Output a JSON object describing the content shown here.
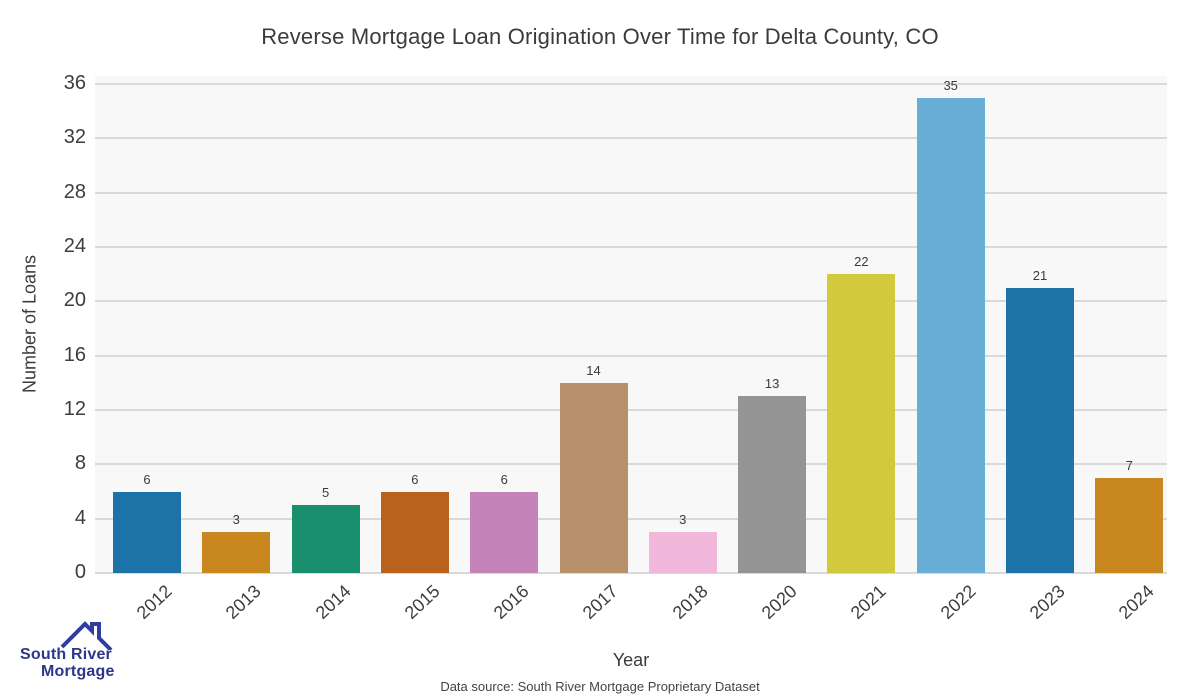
{
  "title": "Reverse Mortgage Loan Origination Over Time for Delta County, CO",
  "chart_data": {
    "type": "bar",
    "title": "Reverse Mortgage Loan Origination Over Time for Delta County, CO",
    "xlabel": "Year",
    "ylabel": "Number of Loans",
    "categories": [
      "2012",
      "2013",
      "2014",
      "2015",
      "2016",
      "2017",
      "2018",
      "2020",
      "2021",
      "2022",
      "2023",
      "2024"
    ],
    "values": [
      6,
      3,
      5,
      6,
      6,
      14,
      3,
      13,
      22,
      35,
      21,
      7
    ],
    "bar_colors": [
      "#1b73a8",
      "#c8881f",
      "#1a8f6e",
      "#b9621e",
      "#c383b8",
      "#b7916c",
      "#f2b8dc",
      "#949494",
      "#d2c93d",
      "#68aed6",
      "#1b73a8",
      "#c8881f"
    ],
    "yticks": [
      0,
      4,
      8,
      12,
      16,
      20,
      24,
      28,
      32,
      36
    ],
    "ylim": [
      0,
      36.6
    ],
    "grid": "horizontal",
    "value_labels_shown": true,
    "legend": "none"
  },
  "colors": {
    "plot_bg": "#f8f8f8",
    "grid": "#d9d9d9",
    "text": "#3b3b3b",
    "logo_text": "#2b3788",
    "logo_roof": "#2f3da3"
  },
  "footer": {
    "source_text": "Data source: South River Mortgage Proprietary Dataset"
  },
  "logo": {
    "line1": "South River",
    "line2": "Mortgage"
  }
}
